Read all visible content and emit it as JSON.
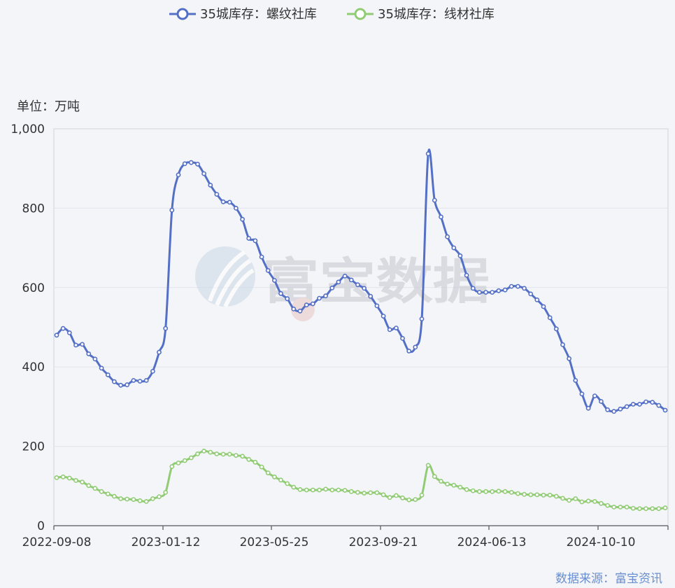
{
  "unit_label": "单位：万吨",
  "source_label": "数据来源：富宝资讯",
  "watermark_text": "富宝数据",
  "colors": {
    "rebar": "#5470c6",
    "wire": "#91cc75",
    "source": "#6a8fd0"
  },
  "chart_data": {
    "type": "line",
    "xlabel": "",
    "ylabel": "",
    "ylim": [
      0,
      1000
    ],
    "y_ticks": [
      0,
      200,
      400,
      600,
      800,
      1000
    ],
    "y_tick_labels": [
      "0",
      "200",
      "400",
      "600",
      "800",
      "1,000"
    ],
    "x_tick_labels": [
      "2022-09-08",
      "2023-01-12",
      "2023-05-25",
      "2023-09-21",
      "2024-06-13",
      "2024-10-10"
    ],
    "grid": true,
    "legend_position": "top-center",
    "series": [
      {
        "name": "35城库存：螺纹社库",
        "values": [
          480,
          497,
          486,
          455,
          457,
          433,
          420,
          397,
          380,
          363,
          354,
          355,
          366,
          364,
          366,
          389,
          437,
          497,
          795,
          884,
          912,
          915,
          911,
          887,
          858,
          835,
          816,
          815,
          800,
          772,
          724,
          718,
          677,
          643,
          618,
          585,
          572,
          546,
          541,
          556,
          559,
          573,
          579,
          599,
          614,
          629,
          619,
          607,
          598,
          578,
          554,
          528,
          494,
          498,
          472,
          440,
          450,
          521,
          937,
          820,
          778,
          728,
          700,
          680,
          631,
          598,
          588,
          588,
          588,
          592,
          594,
          603,
          603,
          598,
          584,
          569,
          552,
          524,
          496,
          456,
          421,
          366,
          332,
          296,
          327,
          313,
          292,
          288,
          294,
          300,
          306,
          306,
          312,
          311,
          303,
          291
        ]
      },
      {
        "name": "35城库存：线材社库",
        "values": [
          121,
          123,
          120,
          114,
          110,
          101,
          94,
          86,
          80,
          74,
          68,
          67,
          66,
          63,
          61,
          68,
          73,
          84,
          149,
          158,
          164,
          171,
          181,
          188,
          185,
          181,
          180,
          180,
          177,
          175,
          167,
          160,
          148,
          133,
          123,
          115,
          106,
          97,
          91,
          90,
          90,
          90,
          92,
          90,
          90,
          89,
          86,
          84,
          82,
          83,
          83,
          78,
          71,
          76,
          70,
          65,
          66,
          77,
          152,
          124,
          112,
          105,
          102,
          97,
          91,
          88,
          86,
          86,
          86,
          87,
          86,
          84,
          81,
          79,
          78,
          78,
          77,
          77,
          74,
          69,
          64,
          68,
          60,
          62,
          61,
          56,
          51,
          47,
          47,
          47,
          44,
          43,
          43,
          43,
          43,
          45
        ]
      }
    ]
  }
}
